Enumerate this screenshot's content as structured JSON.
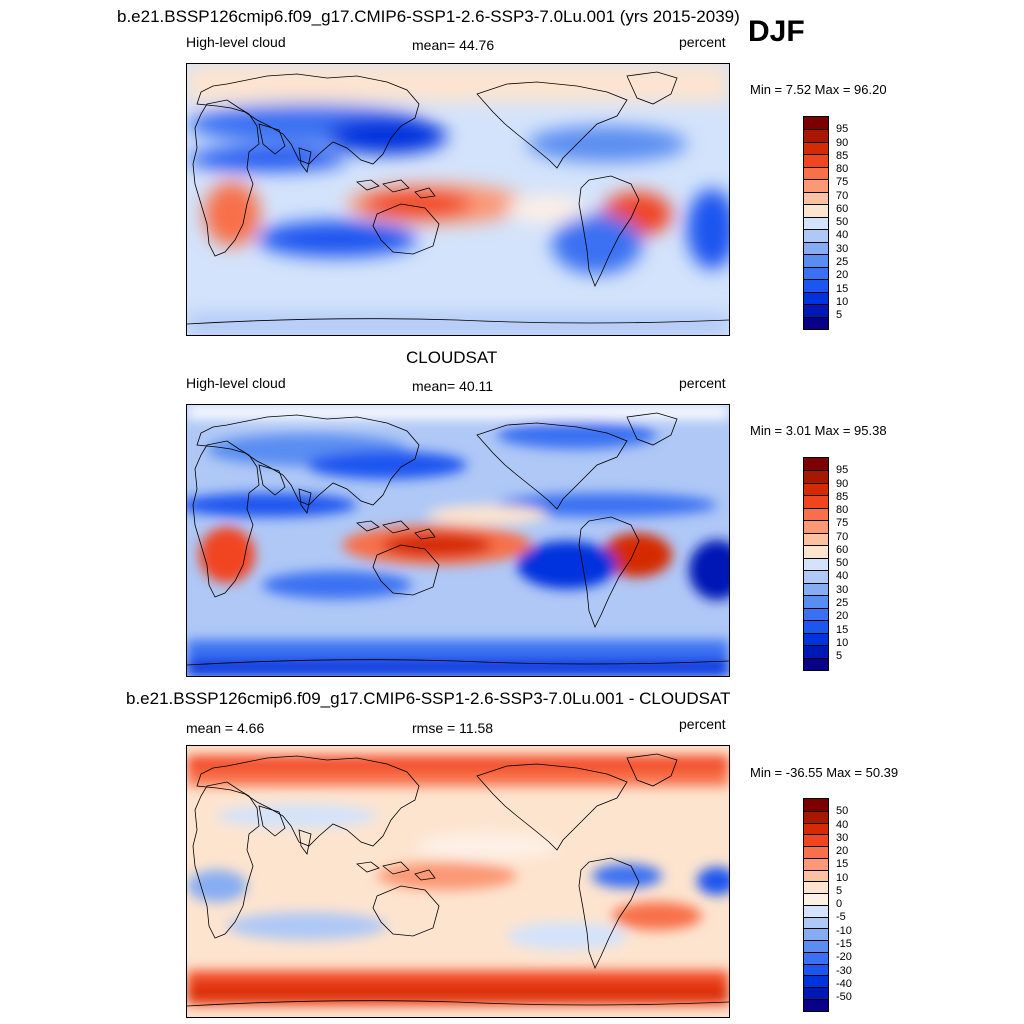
{
  "season": "DJF",
  "colors": {
    "seq": [
      "#080088",
      "#0019b5",
      "#0033dd",
      "#1d55f0",
      "#3a71f2",
      "#5a8df1",
      "#86adf3",
      "#afc8f6",
      "#d3e3fb",
      "#fde4cf",
      "#fcc1a1",
      "#fb9875",
      "#f8704a",
      "#f14520",
      "#d52a04",
      "#a81700",
      "#7c0000"
    ],
    "div": [
      "#080088",
      "#0019b5",
      "#0033dd",
      "#1d55f0",
      "#3a71f2",
      "#5a8df1",
      "#86adf3",
      "#afc8f6",
      "#d3e3fb",
      "#fdf0e6",
      "#fde4cf",
      "#fcc1a1",
      "#fb9875",
      "#f8704a",
      "#f14520",
      "#d52a04",
      "#a81700",
      "#7c0000"
    ]
  },
  "panels": [
    {
      "id": "model",
      "title": "b.e21.BSSP126cmip6.f09_g17.CMIP6-SSP1-2.6-SSP3-7.0Lu.001 (yrs 2015-2039)",
      "left": "High-level cloud",
      "center": "mean=  44.76",
      "right": "percent",
      "minmax": "Min =   7.52 Max =  96.20",
      "ticks": [
        "95",
        "90",
        "85",
        "80",
        "75",
        "70",
        "60",
        "50",
        "40",
        "30",
        "25",
        "20",
        "15",
        "10",
        "5"
      ]
    },
    {
      "id": "obs",
      "title": "CLOUDSAT",
      "left": "High-level cloud",
      "center": "mean=  40.11",
      "right": "percent",
      "minmax": "Min =   3.01 Max =  95.38",
      "ticks": [
        "95",
        "90",
        "85",
        "80",
        "75",
        "70",
        "60",
        "50",
        "40",
        "30",
        "25",
        "20",
        "15",
        "10",
        "5"
      ]
    },
    {
      "id": "diff",
      "title": "b.e21.BSSP126cmip6.f09_g17.CMIP6-SSP1-2.6-SSP3-7.0Lu.001 - CLOUDSAT",
      "left": "mean =   4.66",
      "center": "rmse =  11.58",
      "right": "percent",
      "minmax": "Min = -36.55 Max =  50.39",
      "ticks": [
        "50",
        "40",
        "30",
        "20",
        "15",
        "10",
        "5",
        "0",
        "-5",
        "-10",
        "-15",
        "-20",
        "-30",
        "-40",
        "-50"
      ]
    }
  ]
}
